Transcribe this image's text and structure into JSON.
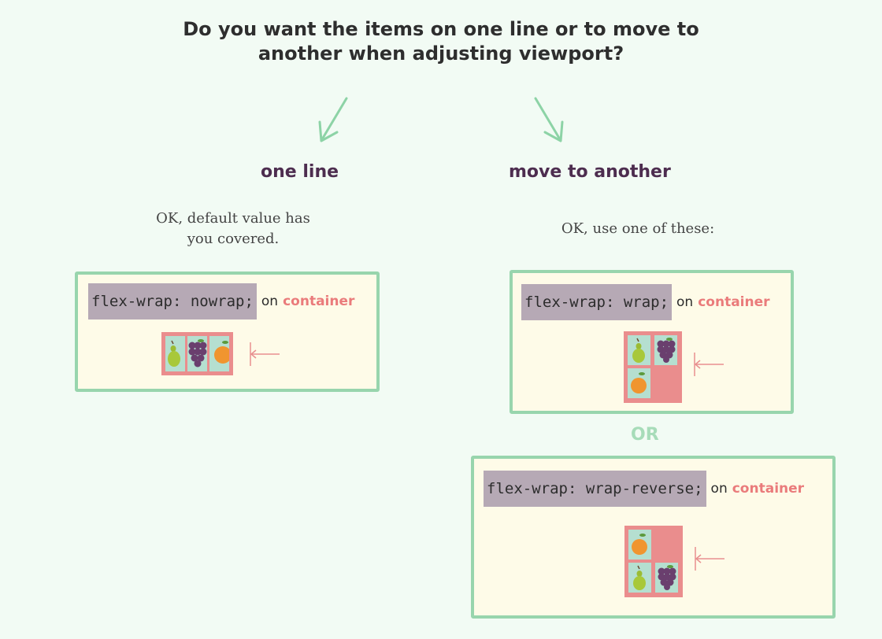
{
  "question": {
    "line1": "Do you want the items on one line or to move to",
    "line2": "another when adjusting viewport?"
  },
  "branches": {
    "left": {
      "label": "one line",
      "note_line1": "OK, default value has",
      "note_line2": "you covered.",
      "panel": {
        "code": "flex-wrap: nowrap;",
        "on": "on",
        "target": "container",
        "items": [
          "pear-icon",
          "grapes-icon",
          "orange-icon"
        ]
      }
    },
    "right": {
      "label": "move to another",
      "note": "OK, use one of these:",
      "panel_wrap": {
        "code": "flex-wrap: wrap;",
        "on": "on",
        "target": "container",
        "items": [
          "pear-icon",
          "grapes-icon",
          "orange-icon"
        ]
      },
      "or_label": "OR",
      "panel_wrap_reverse": {
        "code": "flex-wrap: wrap-reverse;",
        "on": "on",
        "target": "container",
        "items": [
          "orange-icon",
          "pear-icon",
          "grapes-icon"
        ]
      }
    }
  },
  "colors": {
    "background": "#f2fbf4",
    "panel_border": "#98d5ad",
    "panel_fill": "#fefbe8",
    "code_bg": "#b6a9b5",
    "accent": "#ea7b7b",
    "branch_label": "#4d2d4f",
    "item_bg": "#b5dfd0",
    "flex_container": "#ea8d8d"
  }
}
